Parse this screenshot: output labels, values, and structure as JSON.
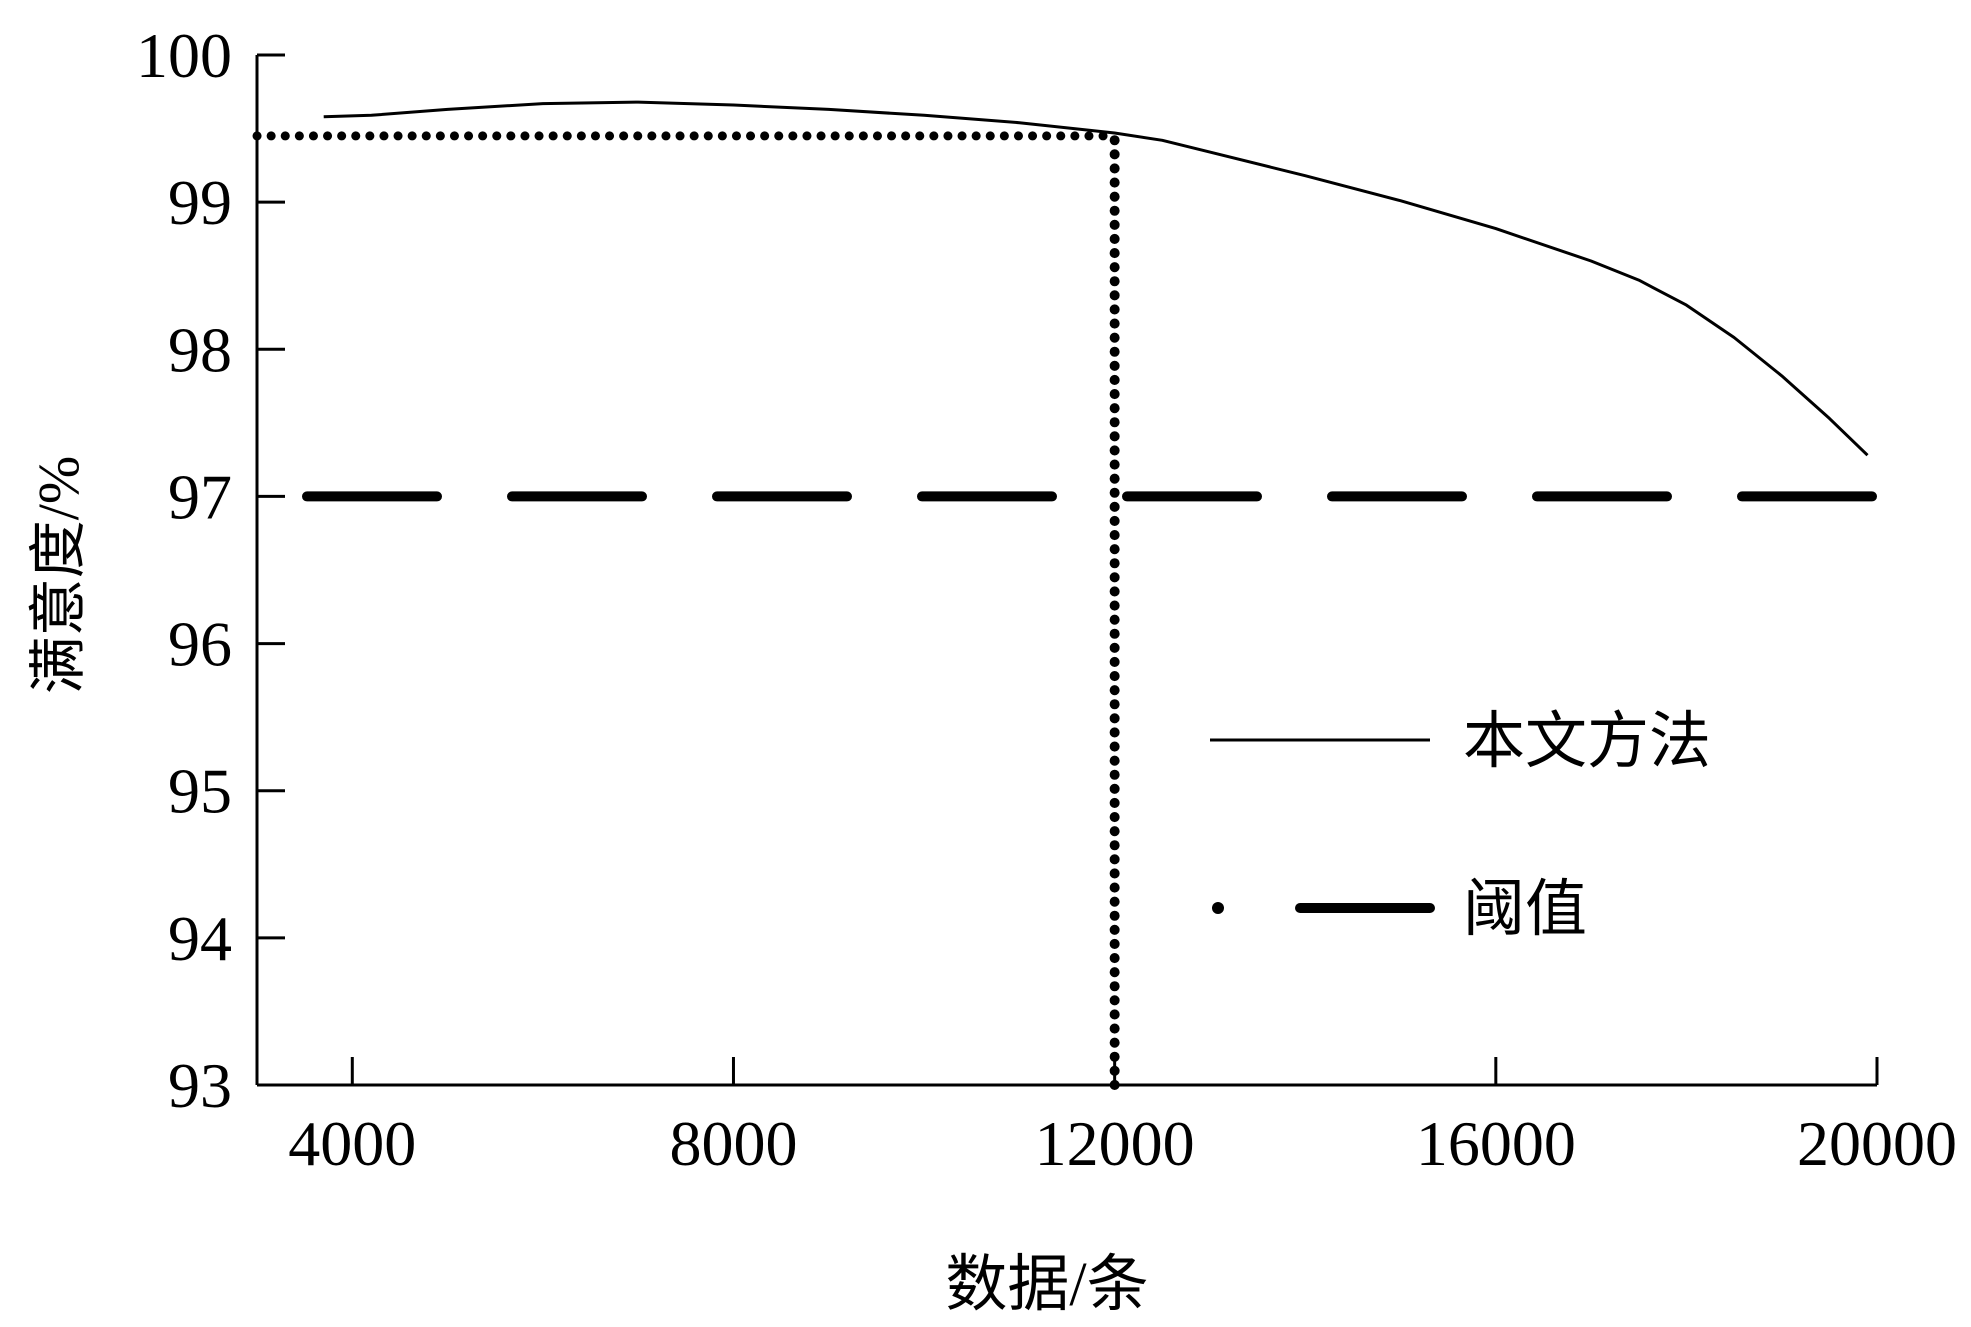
{
  "chart_data": {
    "type": "line",
    "xlabel": "数据/条",
    "ylabel": "满意度/%",
    "xlim": [
      3000,
      20000
    ],
    "ylim": [
      93,
      100
    ],
    "x_ticks": [
      4000,
      8000,
      12000,
      16000,
      20000
    ],
    "y_ticks": [
      93,
      94,
      95,
      96,
      97,
      98,
      99,
      100
    ],
    "grid": false,
    "legend_position": "right-center",
    "series": [
      {
        "name": "本文方法",
        "style": "solid",
        "color": "#000000",
        "x": [
          3700,
          4200,
          5000,
          6000,
          7000,
          8000,
          9000,
          10000,
          11000,
          12000,
          12500,
          13000,
          14000,
          15000,
          16000,
          17000,
          17500,
          18000,
          18500,
          19000,
          19500,
          19900
        ],
        "y": [
          99.58,
          99.59,
          99.63,
          99.67,
          99.68,
          99.66,
          99.63,
          99.59,
          99.54,
          99.47,
          99.42,
          99.34,
          99.18,
          99.01,
          98.82,
          98.6,
          98.47,
          98.3,
          98.08,
          97.82,
          97.53,
          97.28
        ]
      },
      {
        "name": "阈值",
        "style": "dashed",
        "color": "#000000",
        "x": [
          3000,
          20000
        ],
        "y": [
          97,
          97
        ]
      }
    ],
    "annotations": [
      {
        "type": "dotted-horizontal",
        "y": 99.45,
        "x_from": 3000,
        "x_to": 12000
      },
      {
        "type": "dotted-vertical",
        "x": 12000,
        "y_from": 93,
        "y_to": 99.45
      }
    ]
  }
}
